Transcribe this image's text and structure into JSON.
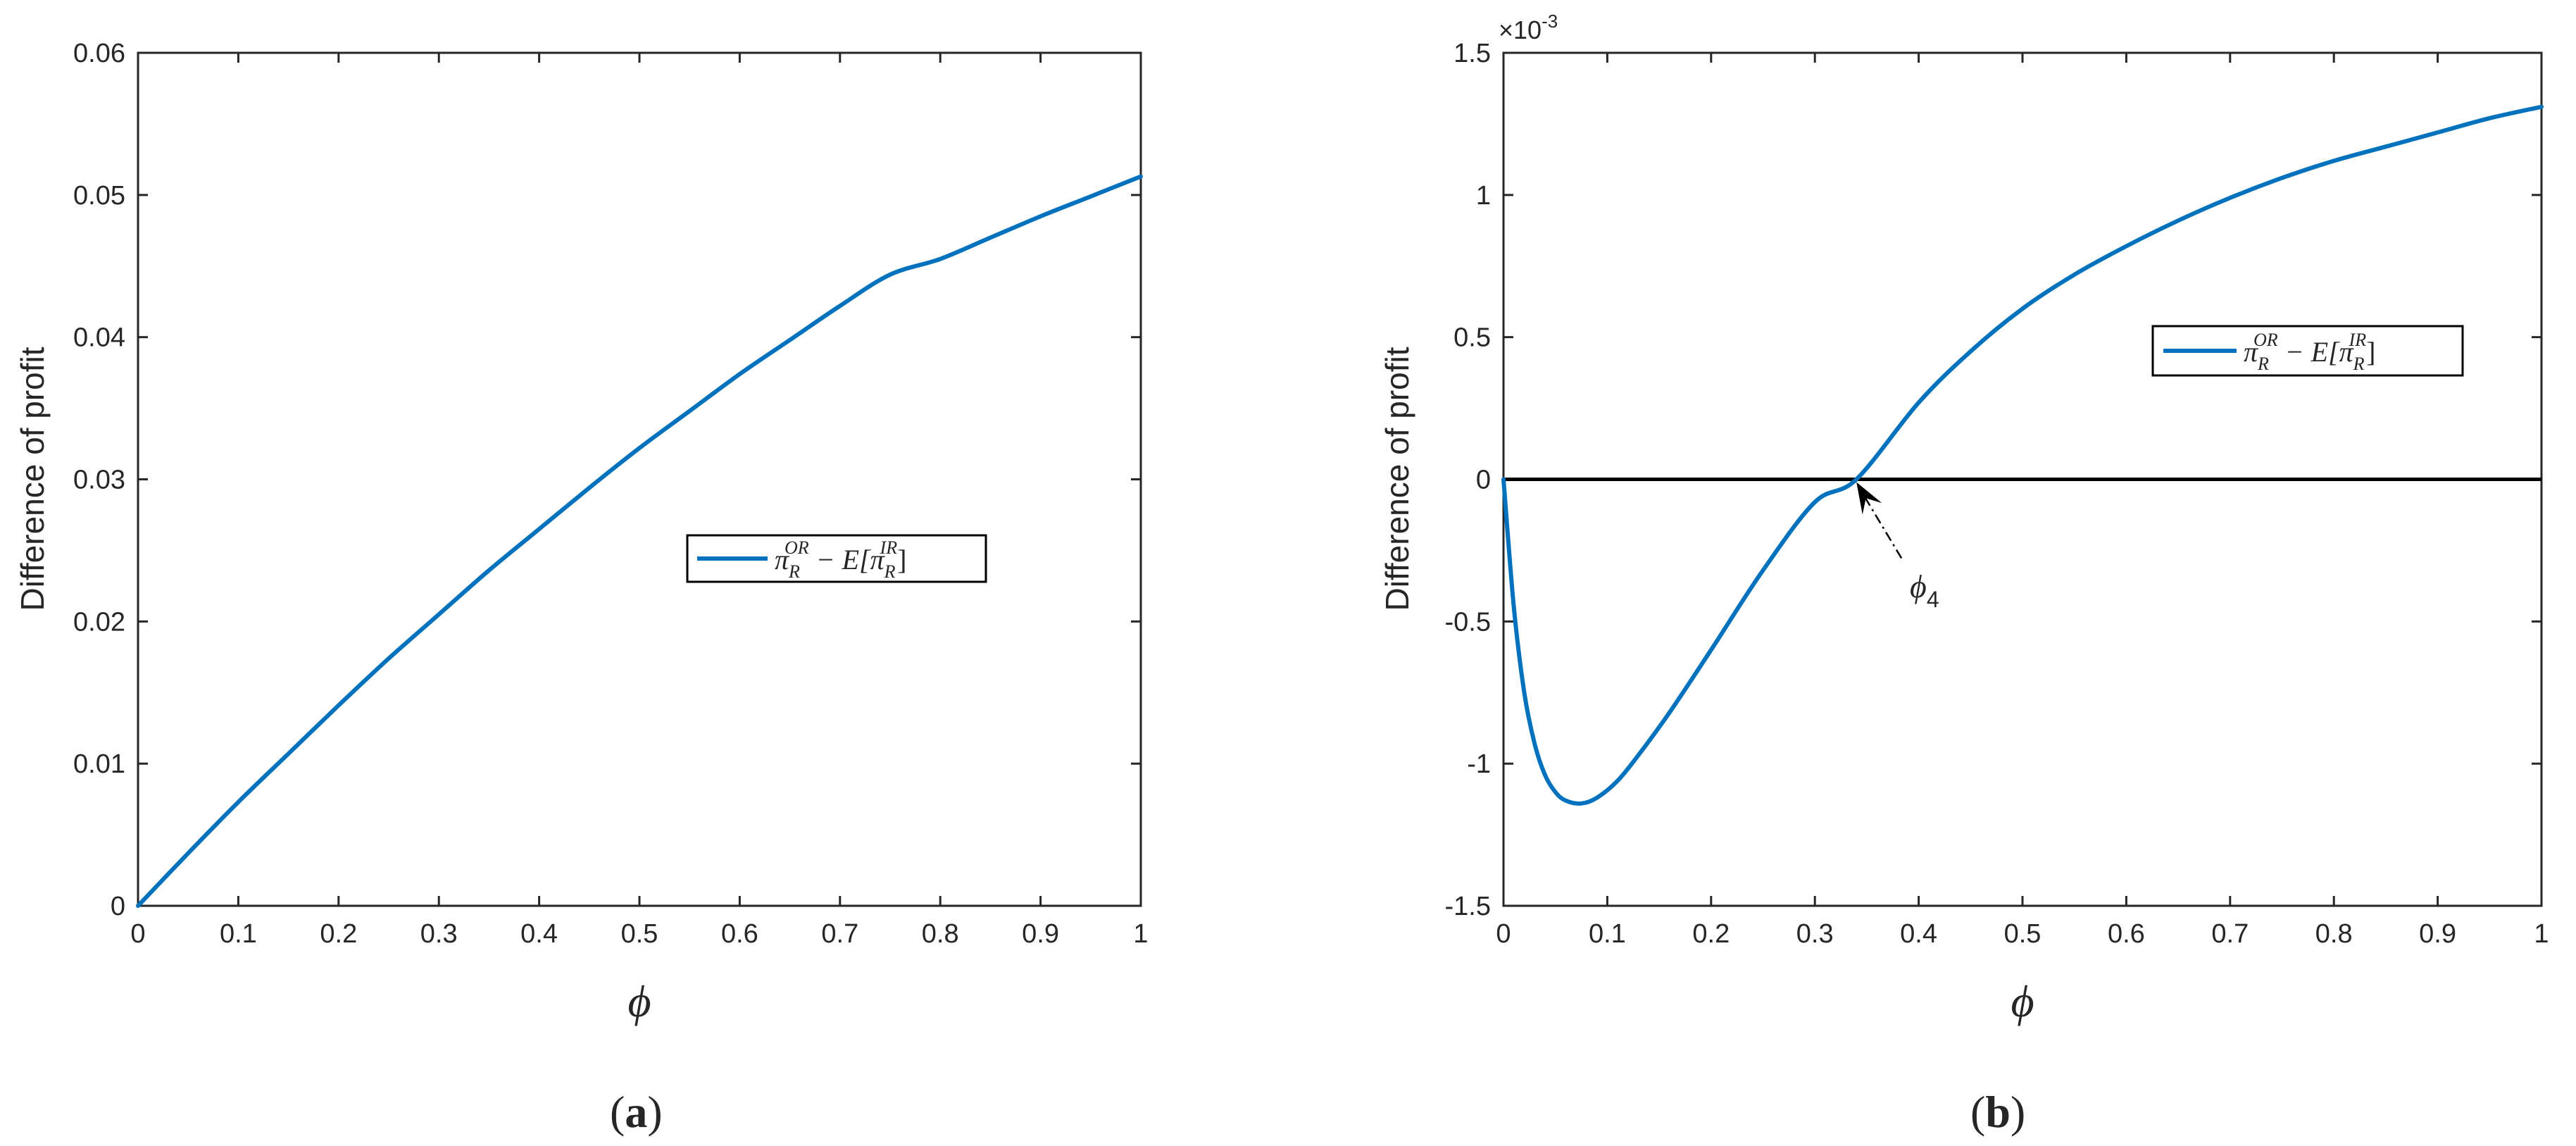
{
  "chart_data": [
    {
      "type": "line",
      "panel_label": "(a)",
      "panel_letter": "a",
      "xlabel": "ϕ",
      "ylabel": "Difference of profit",
      "xlim": [
        0,
        1
      ],
      "ylim": [
        0,
        0.06
      ],
      "xticks": [
        0,
        0.1,
        0.2,
        0.3,
        0.4,
        0.5,
        0.6,
        0.7,
        0.8,
        0.9,
        1
      ],
      "xtick_labels": [
        "0",
        "0.1",
        "0.2",
        "0.3",
        "0.4",
        "0.5",
        "0.6",
        "0.7",
        "0.8",
        "0.9",
        "1"
      ],
      "yticks": [
        0,
        0.01,
        0.02,
        0.03,
        0.04,
        0.05,
        0.06
      ],
      "ytick_labels": [
        "0",
        "0.01",
        "0.02",
        "0.03",
        "0.04",
        "0.05",
        "0.06"
      ],
      "grid": false,
      "legend_position": "center-right",
      "series": [
        {
          "name": "π_R^OR − E[π_R^IR]",
          "color": "#0072BD",
          "x": [
            0,
            0.05,
            0.1,
            0.15,
            0.2,
            0.25,
            0.3,
            0.35,
            0.4,
            0.45,
            0.5,
            0.55,
            0.6,
            0.65,
            0.7,
            0.75,
            0.8,
            0.85,
            0.9,
            0.95,
            1.0
          ],
          "y": [
            0,
            0.0037,
            0.0073,
            0.0107,
            0.0141,
            0.0174,
            0.0205,
            0.0236,
            0.0265,
            0.0294,
            0.0322,
            0.0348,
            0.0374,
            0.0398,
            0.0422,
            0.0444,
            0.0455,
            0.047,
            0.0485,
            0.0499,
            0.0513
          ]
        }
      ],
      "hlines": []
    },
    {
      "type": "line",
      "panel_label": "(b)",
      "panel_letter": "b",
      "xlabel": "ϕ",
      "ylabel": "Difference of profit",
      "xlim": [
        0,
        1
      ],
      "ylim": [
        -1.5,
        1.5
      ],
      "y_multiplier": "×10",
      "y_multiplier_exp": "-3",
      "xticks": [
        0,
        0.1,
        0.2,
        0.3,
        0.4,
        0.5,
        0.6,
        0.7,
        0.8,
        0.9,
        1
      ],
      "xtick_labels": [
        "0",
        "0.1",
        "0.2",
        "0.3",
        "0.4",
        "0.5",
        "0.6",
        "0.7",
        "0.8",
        "0.9",
        "1"
      ],
      "yticks": [
        -1.5,
        -1,
        -0.5,
        0,
        0.5,
        1,
        1.5
      ],
      "ytick_labels": [
        "-1.5",
        "-1",
        "-0.5",
        "0",
        "0.5",
        "1",
        "1.5"
      ],
      "grid": false,
      "legend_position": "upper-right",
      "series": [
        {
          "name": "π_R^OR − E[π_R^IR]",
          "color": "#0072BD",
          "x": [
            0,
            0.01,
            0.02,
            0.03,
            0.04,
            0.05,
            0.06,
            0.075,
            0.09,
            0.11,
            0.13,
            0.16,
            0.2,
            0.25,
            0.3,
            0.34,
            0.4,
            0.45,
            0.5,
            0.55,
            0.6,
            0.65,
            0.7,
            0.75,
            0.8,
            0.85,
            0.9,
            0.95,
            1.0
          ],
          "y": [
            0,
            -0.45,
            -0.75,
            -0.93,
            -1.04,
            -1.1,
            -1.13,
            -1.14,
            -1.12,
            -1.06,
            -0.97,
            -0.82,
            -0.6,
            -0.32,
            -0.08,
            0,
            0.27,
            0.45,
            0.6,
            0.72,
            0.82,
            0.91,
            0.99,
            1.06,
            1.12,
            1.17,
            1.22,
            1.27,
            1.31
          ]
        }
      ],
      "hlines": [
        {
          "y": 0,
          "color": "#000000"
        }
      ],
      "annotations": [
        {
          "text": "ϕ",
          "subscript": "4",
          "arrow_to": {
            "x": 0.34,
            "y": 0
          }
        }
      ]
    }
  ],
  "legend_parts": {
    "pi": "π",
    "sub_R": "R",
    "sup_OR": "OR",
    "sup_IR": "IR",
    "minus_E": " − E[",
    "close": "]"
  }
}
